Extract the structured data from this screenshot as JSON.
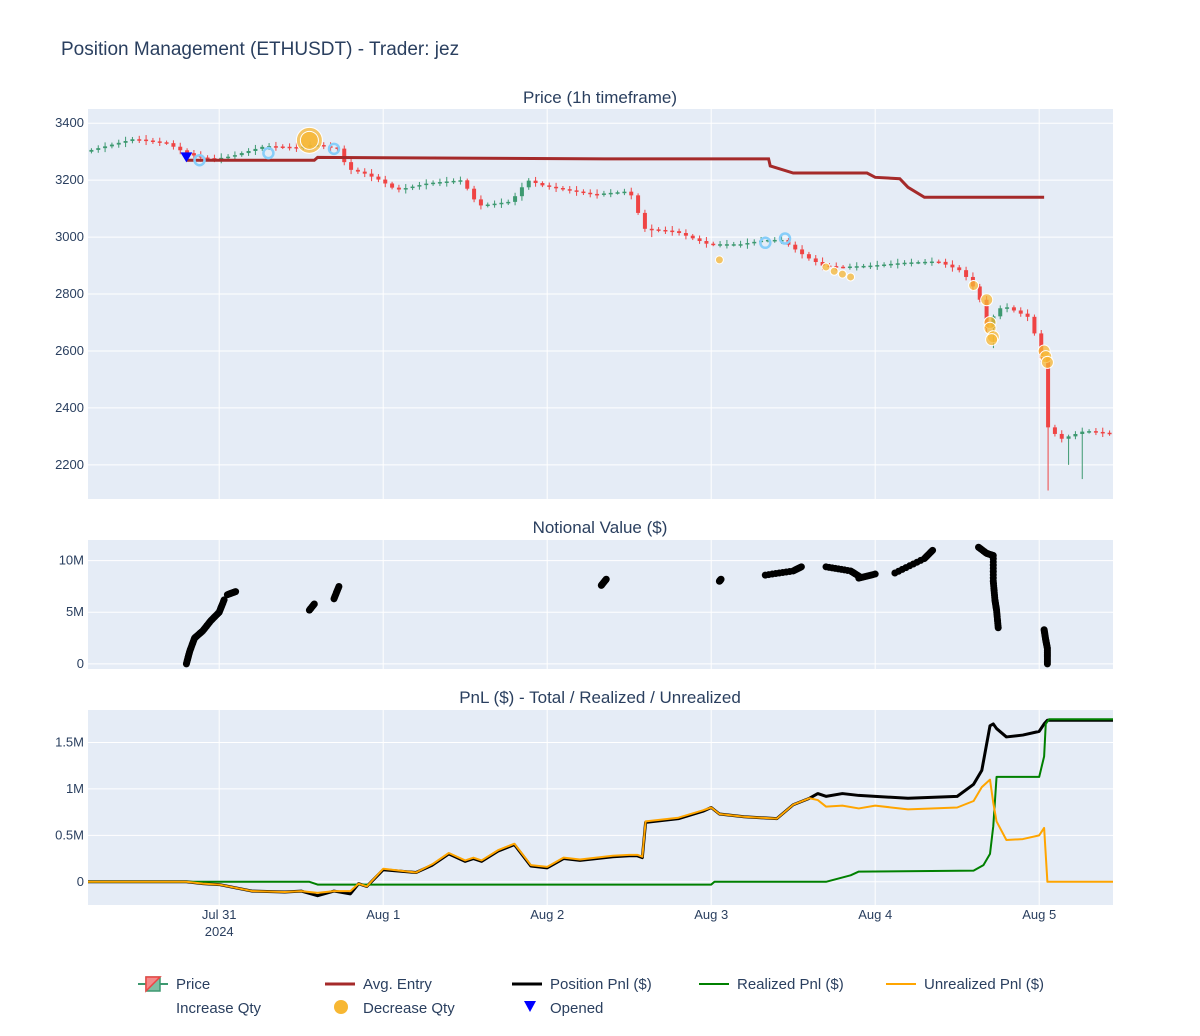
{
  "figure_title": "Position Management (ETHUSDT) - Trader: jez",
  "colors": {
    "plot_bg": "#e5ecf6",
    "grid": "#ffffff",
    "increasing": "#3d9970",
    "decreasing": "#ef4444",
    "avg_entry": "#a52a2a",
    "position_pnl": "#000000",
    "realized_pnl": "#008000",
    "unrealized_pnl": "#ffa500",
    "increase_marker": "#87cefa",
    "decrease_marker": "#f7b733",
    "opened_marker": "#0000ff"
  },
  "chart_data": [
    {
      "type": "candlestick",
      "title": "Price (1h timeframe)",
      "ylim": [
        2080,
        3450
      ],
      "yticks": [
        "2200",
        "2400",
        "2600",
        "2800",
        "3000",
        "3200",
        "3400"
      ],
      "x_range_days": [
        -0.8,
        5.45
      ],
      "candle_anchors": [
        [
          -0.8,
          3300
        ],
        [
          -0.5,
          3345
        ],
        [
          -0.3,
          3330
        ],
        [
          -0.2,
          3300
        ],
        [
          -0.1,
          3280
        ],
        [
          0.0,
          3275
        ],
        [
          0.1,
          3285
        ],
        [
          0.3,
          3320
        ],
        [
          0.5,
          3315
        ],
        [
          0.6,
          3325
        ],
        [
          0.75,
          3310
        ],
        [
          0.8,
          3240
        ],
        [
          0.9,
          3225
        ],
        [
          1.0,
          3200
        ],
        [
          1.1,
          3165
        ],
        [
          1.3,
          3190
        ],
        [
          1.5,
          3200
        ],
        [
          1.6,
          3110
        ],
        [
          1.8,
          3125
        ],
        [
          1.9,
          3200
        ],
        [
          2.0,
          3180
        ],
        [
          2.2,
          3160
        ],
        [
          2.3,
          3150
        ],
        [
          2.5,
          3160
        ],
        [
          2.55,
          3140
        ],
        [
          2.6,
          3030
        ],
        [
          2.8,
          3020
        ],
        [
          3.0,
          2975
        ],
        [
          3.2,
          2975
        ],
        [
          3.35,
          2990
        ],
        [
          3.45,
          2990
        ],
        [
          3.6,
          2930
        ],
        [
          3.7,
          2900
        ],
        [
          3.8,
          2895
        ],
        [
          4.0,
          2900
        ],
        [
          4.2,
          2910
        ],
        [
          4.4,
          2915
        ],
        [
          4.55,
          2880
        ],
        [
          4.65,
          2800
        ],
        [
          4.7,
          2680
        ],
        [
          4.75,
          2730
        ],
        [
          4.8,
          2760
        ],
        [
          4.95,
          2720
        ],
        [
          5.0,
          2650
        ],
        [
          5.04,
          2560
        ],
        [
          5.06,
          2340
        ],
        [
          5.15,
          2290
        ],
        [
          5.3,
          2320
        ],
        [
          5.45,
          2310
        ]
      ],
      "wick_spikes": [
        [
          5.05,
          2110
        ],
        [
          5.25,
          2150
        ],
        [
          5.45,
          2230
        ],
        [
          5.15,
          2200
        ],
        [
          4.7,
          2610
        ],
        [
          2.6,
          3000
        ]
      ],
      "avg_entry": {
        "name": "Avg. Entry",
        "x": [
          -0.2,
          0.58,
          0.6,
          2.35,
          3.35,
          3.36,
          3.5,
          3.95,
          4.0,
          4.15,
          4.2,
          4.3,
          5.03
        ],
        "y": [
          3270,
          3270,
          3280,
          3275,
          3275,
          3250,
          3225,
          3225,
          3210,
          3205,
          3175,
          3140,
          3140
        ]
      },
      "increase_qty": {
        "name": "Increase Qty",
        "x": [
          -0.12,
          0.3,
          0.7,
          3.33,
          3.45
        ],
        "y": [
          3270,
          3295,
          3310,
          2980,
          2995
        ]
      },
      "decrease_qty": {
        "name": "Decrease Qty",
        "x": [
          0.55,
          0.55,
          3.05,
          3.7,
          3.75,
          3.8,
          3.85,
          4.6,
          4.68,
          4.7,
          4.7,
          4.72,
          4.71,
          5.03,
          5.04,
          5.05
        ],
        "y": [
          3340,
          3340,
          2920,
          2895,
          2880,
          2870,
          2860,
          2830,
          2780,
          2700,
          2680,
          2650,
          2640,
          2600,
          2580,
          2560
        ],
        "sizes": [
          13,
          9,
          4,
          4,
          4,
          4,
          4,
          5,
          6,
          6,
          6,
          6,
          6,
          6,
          6,
          6
        ]
      },
      "opened": {
        "name": "Opened",
        "x": [
          -0.2
        ],
        "y": [
          3280
        ]
      }
    },
    {
      "type": "scatter",
      "title": "Notional Value ($)",
      "ylim": [
        -500000,
        12000000
      ],
      "yticks": [
        "0",
        "5M",
        "10M"
      ],
      "groups": [
        [
          [
            -0.2,
            0.0
          ],
          [
            -0.18,
            1200000
          ],
          [
            -0.15,
            2500000
          ],
          [
            -0.1,
            3200000
          ],
          [
            -0.05,
            4200000
          ],
          [
            0.0,
            5000000
          ],
          [
            0.03,
            6200000
          ]
        ],
        [
          [
            0.05,
            6700000
          ],
          [
            0.1,
            7000000
          ]
        ],
        [
          [
            0.55,
            5200000
          ],
          [
            0.58,
            5800000
          ]
        ],
        [
          [
            0.7,
            6300000
          ],
          [
            0.73,
            7500000
          ]
        ],
        [
          [
            2.33,
            7600000
          ],
          [
            2.36,
            8200000
          ]
        ],
        [
          [
            3.05,
            8000000
          ],
          [
            3.06,
            8200000
          ]
        ],
        [
          [
            3.33,
            8600000
          ],
          [
            3.5,
            9000000
          ],
          [
            3.55,
            9400000
          ]
        ],
        [
          [
            3.7,
            9400000
          ],
          [
            3.85,
            9000000
          ],
          [
            3.9,
            8500000
          ]
        ],
        [
          [
            3.9,
            8300000
          ],
          [
            4.0,
            8700000
          ]
        ],
        [
          [
            4.12,
            8800000
          ],
          [
            4.3,
            10200000
          ],
          [
            4.35,
            11000000
          ]
        ],
        [
          [
            4.63,
            11300000
          ],
          [
            4.68,
            10700000
          ],
          [
            4.72,
            10500000
          ],
          [
            4.72,
            8000000
          ],
          [
            4.73,
            6200000
          ],
          [
            4.74,
            5200000
          ],
          [
            4.75,
            3500000
          ]
        ],
        [
          [
            5.03,
            3300000
          ],
          [
            5.04,
            2300000
          ],
          [
            5.05,
            1500000
          ],
          [
            5.05,
            0.0
          ]
        ]
      ]
    },
    {
      "type": "line",
      "title": "PnL ($) - Total / Realized / Unrealized",
      "ylim": [
        -250000,
        1850000
      ],
      "yticks": [
        "0",
        "0.5M",
        "1M",
        "1.5M"
      ],
      "xticks": [
        {
          "value": 0,
          "label": "Jul 31",
          "sublabel": "2024"
        },
        {
          "value": 1,
          "label": "Aug 1"
        },
        {
          "value": 2,
          "label": "Aug 2"
        },
        {
          "value": 3,
          "label": "Aug 3"
        },
        {
          "value": 4,
          "label": "Aug 4"
        },
        {
          "value": 5,
          "label": "Aug 5"
        }
      ],
      "series": [
        {
          "name": "Position Pnl ($)",
          "x": [
            -0.8,
            -0.2,
            -0.1,
            0.0,
            0.2,
            0.4,
            0.5,
            0.6,
            0.7,
            0.8,
            0.85,
            0.9,
            1.0,
            1.2,
            1.3,
            1.4,
            1.5,
            1.55,
            1.6,
            1.7,
            1.8,
            1.9,
            2.0,
            2.1,
            2.2,
            2.4,
            2.5,
            2.55,
            2.58,
            2.6,
            2.8,
            2.95,
            3.0,
            3.05,
            3.2,
            3.4,
            3.5,
            3.6,
            3.65,
            3.7,
            3.8,
            3.9,
            4.0,
            4.2,
            4.5,
            4.6,
            4.65,
            4.7,
            4.72,
            4.74,
            4.8,
            4.9,
            5.0,
            5.03,
            5.05,
            5.45
          ],
          "y": [
            0,
            0,
            -20000,
            -30000,
            -100000,
            -110000,
            -100000,
            -150000,
            -100000,
            -130000,
            -20000,
            -50000,
            130000,
            100000,
            180000,
            300000,
            220000,
            250000,
            220000,
            330000,
            400000,
            170000,
            150000,
            250000,
            230000,
            270000,
            280000,
            280000,
            260000,
            640000,
            680000,
            760000,
            800000,
            730000,
            700000,
            680000,
            830000,
            900000,
            950000,
            920000,
            950000,
            930000,
            920000,
            900000,
            920000,
            1050000,
            1200000,
            1680000,
            1700000,
            1650000,
            1560000,
            1580000,
            1620000,
            1700000,
            1740000,
            1740000
          ]
        },
        {
          "name": "Realized Pnl ($)",
          "x": [
            -0.8,
            0.55,
            0.6,
            3.0,
            3.02,
            3.7,
            3.85,
            3.9,
            4.6,
            4.66,
            4.7,
            4.72,
            4.74,
            5.0,
            5.03,
            5.04,
            5.06,
            5.45
          ],
          "y": [
            0,
            0,
            -30000,
            -30000,
            0,
            0,
            70000,
            110000,
            120000,
            180000,
            300000,
            600000,
            1130000,
            1130000,
            1350000,
            1700000,
            1750000,
            1750000
          ]
        },
        {
          "name": "Unrealized Pnl ($)",
          "x": [
            -0.8,
            -0.2,
            -0.1,
            0.0,
            0.2,
            0.4,
            0.5,
            0.6,
            0.7,
            0.8,
            0.85,
            0.9,
            1.0,
            1.2,
            1.3,
            1.4,
            1.5,
            1.55,
            1.6,
            1.7,
            1.8,
            1.9,
            2.0,
            2.1,
            2.2,
            2.4,
            2.5,
            2.55,
            2.58,
            2.6,
            2.8,
            2.95,
            3.0,
            3.05,
            3.2,
            3.4,
            3.5,
            3.6,
            3.65,
            3.7,
            3.8,
            3.9,
            4.0,
            4.2,
            4.5,
            4.6,
            4.65,
            4.7,
            4.72,
            4.74,
            4.8,
            4.9,
            5.0,
            5.03,
            5.05,
            5.45
          ],
          "y": [
            0,
            0,
            -20000,
            -30000,
            -100000,
            -110000,
            -100000,
            -120000,
            -100000,
            -100000,
            -20000,
            -50000,
            140000,
            100000,
            190000,
            310000,
            230000,
            260000,
            230000,
            340000,
            410000,
            180000,
            160000,
            260000,
            240000,
            280000,
            290000,
            290000,
            270000,
            650000,
            690000,
            770000,
            800000,
            730000,
            700000,
            680000,
            830000,
            900000,
            880000,
            810000,
            820000,
            790000,
            820000,
            780000,
            800000,
            870000,
            1020000,
            1100000,
            850000,
            650000,
            450000,
            460000,
            500000,
            580000,
            0,
            0
          ]
        }
      ]
    }
  ],
  "legend": {
    "price": "Price",
    "avg_entry": "Avg. Entry",
    "position_pnl": "Position Pnl ($)",
    "realized_pnl": "Realized Pnl ($)",
    "unrealized_pnl": "Unrealized Pnl ($)",
    "increase_qty": "Increase Qty",
    "decrease_qty": "Decrease Qty",
    "opened": "Opened"
  }
}
